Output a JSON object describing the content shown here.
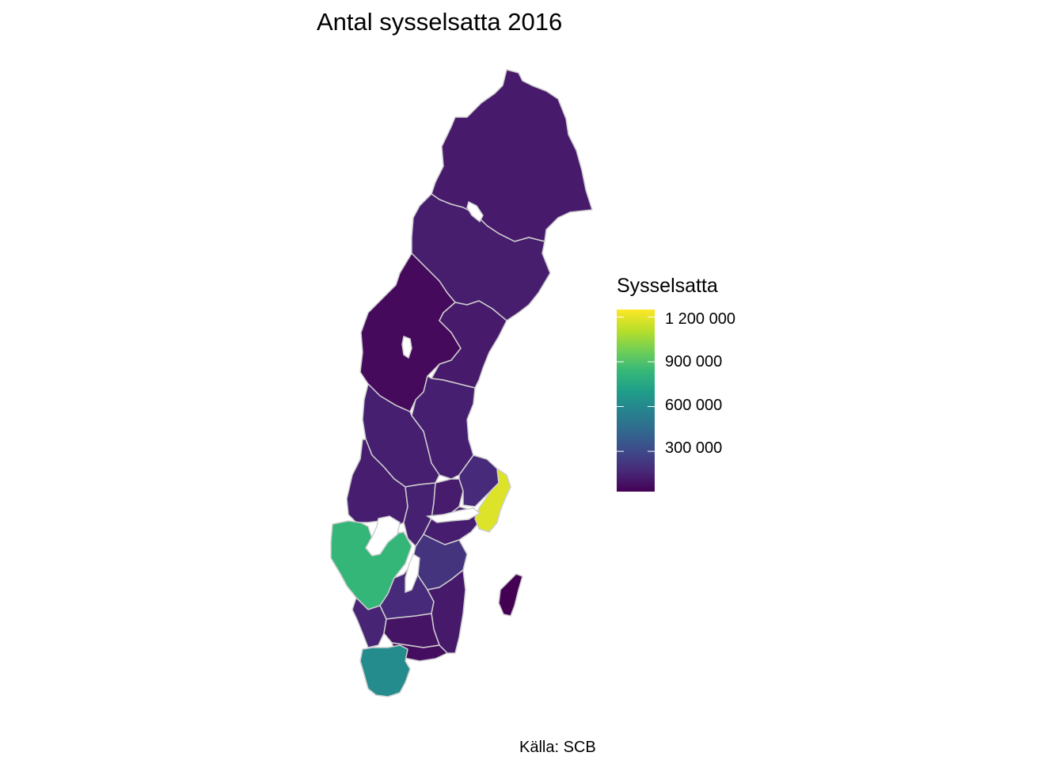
{
  "title": "Antal sysselsatta 2016",
  "caption": "Källa: SCB",
  "legend": {
    "title": "Sysselsatta",
    "ticks": [
      {
        "value": 1200000,
        "label": "1 200 000"
      },
      {
        "value": 900000,
        "label": "900 000"
      },
      {
        "value": 600000,
        "label": "600 000"
      },
      {
        "value": 300000,
        "label": "300 000"
      }
    ],
    "min": 30000,
    "max": 1250000,
    "palette": [
      "#440154",
      "#482878",
      "#3e4989",
      "#31688e",
      "#26828e",
      "#1f9e89",
      "#35b779",
      "#6ece58",
      "#b5de2b",
      "#fde725"
    ],
    "border_color": "#cfcfcf"
  },
  "chart_data": {
    "type": "choropleth",
    "regions": [
      {
        "id": "norrbotten",
        "value": 118000
      },
      {
        "id": "vasterbotten",
        "value": 128000
      },
      {
        "id": "jamtland",
        "value": 62000
      },
      {
        "id": "vasternorrland",
        "value": 118000
      },
      {
        "id": "gavleborg",
        "value": 135000
      },
      {
        "id": "dalarna",
        "value": 135000
      },
      {
        "id": "varmland",
        "value": 130000
      },
      {
        "id": "uppsala",
        "value": 175000
      },
      {
        "id": "vastmanland",
        "value": 125000
      },
      {
        "id": "orebro",
        "value": 140000
      },
      {
        "id": "sodermanland",
        "value": 130000
      },
      {
        "id": "stockholm",
        "value": 1190000
      },
      {
        "id": "ostergotland",
        "value": 215000
      },
      {
        "id": "vastra-gotaland",
        "value": 840000
      },
      {
        "id": "jonkoping",
        "value": 175000
      },
      {
        "id": "kalmar",
        "value": 115000
      },
      {
        "id": "kronoberg",
        "value": 95000
      },
      {
        "id": "halland",
        "value": 150000
      },
      {
        "id": "blekinge",
        "value": 70000
      },
      {
        "id": "skane",
        "value": 620000
      },
      {
        "id": "gotland",
        "value": 28000
      }
    ]
  }
}
